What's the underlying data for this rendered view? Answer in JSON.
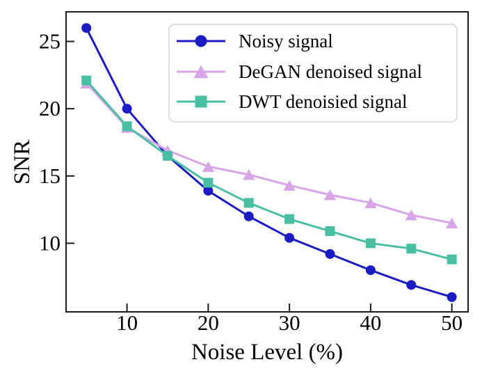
{
  "figure": {
    "background": "#ffffff",
    "axis_color": "#1a1a1a",
    "legend_border_color": "#d3d3d3",
    "legend_background": "#ffffff"
  },
  "chart_data": {
    "type": "line",
    "title": "",
    "xlabel": "Noise Level (%)",
    "ylabel": "SNR",
    "x": [
      5,
      10,
      15,
      20,
      25,
      30,
      35,
      40,
      45,
      50
    ],
    "xticks": [
      10,
      20,
      30,
      40,
      50
    ],
    "yticks": [
      10,
      15,
      20,
      25
    ],
    "xlim": [
      2.5,
      52
    ],
    "ylim": [
      4.9,
      27.2
    ],
    "grid": false,
    "legend_position": "upper right",
    "series": [
      {
        "name": "Noisy signal",
        "marker": "circle",
        "color": "#1c1cc4",
        "values": [
          26,
          20,
          16.5,
          13.9,
          12,
          10.4,
          9.2,
          8,
          6.9,
          6
        ]
      },
      {
        "name": "DeGAN denoised signal",
        "marker": "triangle",
        "color": "#d8a5e8",
        "values": [
          21.9,
          18.6,
          16.9,
          15.7,
          15.1,
          14.3,
          13.6,
          13,
          12.1,
          11.5
        ]
      },
      {
        "name": "DWT denoisied signal",
        "marker": "square",
        "color": "#48bfa3",
        "values": [
          22.1,
          18.7,
          16.5,
          14.5,
          13,
          11.8,
          10.9,
          10,
          9.6,
          8.8
        ]
      }
    ]
  }
}
